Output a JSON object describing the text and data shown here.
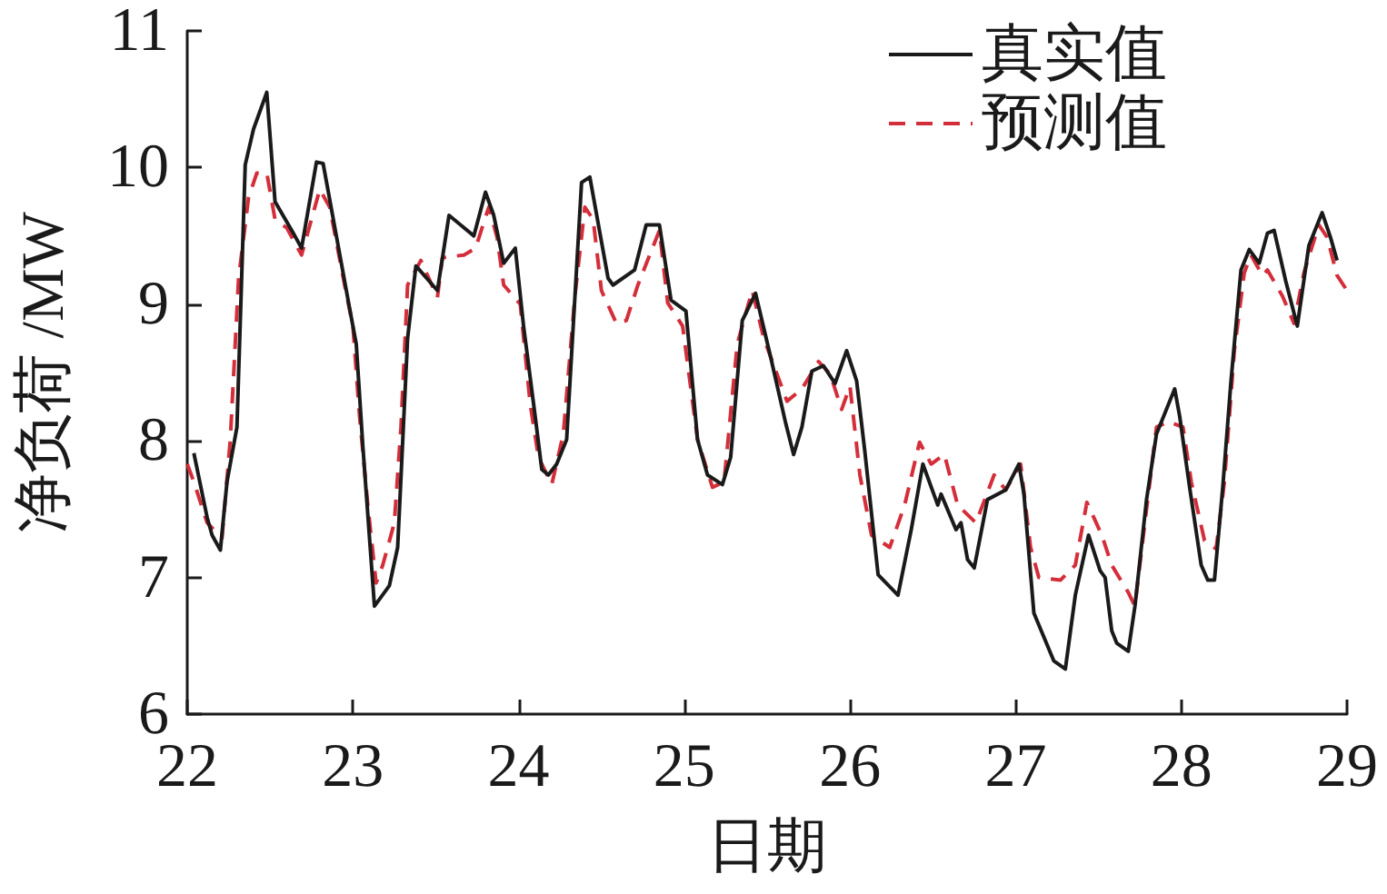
{
  "chart_data": {
    "type": "line",
    "xlabel": "日期",
    "ylabel": "净负荷 /MW",
    "xlim": [
      22,
      29
    ],
    "xticks": [
      22,
      23,
      24,
      25,
      26,
      27,
      28,
      29
    ],
    "ylim": [
      6,
      11
    ],
    "yticks": [
      6,
      7,
      8,
      9,
      10,
      11
    ],
    "grid": false,
    "legend": "top right",
    "marker": "none",
    "series": [
      {
        "name": "真实值",
        "color": "#1a1a1a",
        "line_style": "solid",
        "x": [
          22.04,
          22.12,
          22.15,
          22.2,
          22.24,
          22.3,
          22.35,
          22.4,
          22.48,
          22.53,
          22.64,
          22.69,
          22.78,
          22.82,
          22.98,
          23.02,
          23.06,
          23.13,
          23.22,
          23.27,
          23.33,
          23.38,
          23.51,
          23.58,
          23.73,
          23.8,
          23.85,
          23.91,
          23.98,
          24.03,
          24.1,
          24.14,
          24.18,
          24.23,
          24.29,
          24.38,
          24.43,
          24.54,
          24.57,
          24.7,
          24.77,
          24.85,
          24.92,
          25.01,
          25.08,
          25.14,
          25.23,
          25.28,
          25.35,
          25.43,
          25.52,
          25.61,
          25.66,
          25.71,
          25.77,
          25.84,
          25.91,
          25.98,
          26.04,
          26.09,
          26.17,
          26.29,
          26.37,
          26.44,
          26.53,
          26.55,
          26.64,
          26.67,
          26.71,
          26.75,
          26.83,
          26.94,
          27.02,
          27.05,
          27.11,
          27.23,
          27.3,
          27.36,
          27.44,
          27.51,
          27.54,
          27.58,
          27.61,
          27.68,
          27.72,
          27.79,
          27.85,
          27.96,
          27.99,
          28.05,
          28.12,
          28.16,
          28.2,
          28.25,
          28.3,
          28.36,
          28.41,
          28.47,
          28.52,
          28.56,
          28.63,
          28.7,
          28.77,
          28.85,
          28.9,
          28.94
        ],
        "values": [
          7.91,
          7.44,
          7.31,
          7.2,
          7.7,
          8.1,
          10.02,
          10.28,
          10.55,
          9.75,
          9.52,
          9.41,
          10.04,
          10.03,
          8.97,
          8.71,
          7.96,
          6.79,
          6.94,
          7.22,
          8.75,
          9.28,
          9.1,
          9.65,
          9.5,
          9.82,
          9.65,
          9.3,
          9.41,
          8.84,
          8.18,
          7.79,
          7.75,
          7.83,
          8.01,
          9.89,
          9.93,
          9.19,
          9.14,
          9.25,
          9.58,
          9.58,
          9.03,
          8.95,
          8.01,
          7.75,
          7.68,
          7.88,
          8.88,
          9.08,
          8.62,
          8.14,
          7.9,
          8.1,
          8.51,
          8.55,
          8.42,
          8.66,
          8.44,
          7.92,
          7.02,
          6.87,
          7.35,
          7.83,
          7.53,
          7.61,
          7.35,
          7.4,
          7.13,
          7.07,
          7.57,
          7.64,
          7.83,
          7.61,
          6.74,
          6.39,
          6.33,
          6.87,
          7.31,
          7.05,
          7.0,
          6.61,
          6.52,
          6.46,
          6.79,
          7.57,
          8.05,
          8.38,
          8.18,
          7.66,
          7.09,
          6.98,
          6.98,
          7.66,
          8.44,
          9.25,
          9.4,
          9.3,
          9.52,
          9.54,
          9.17,
          8.84,
          9.43,
          9.67,
          9.49,
          9.32
        ]
      },
      {
        "name": "预测值",
        "color": "#d42e3b",
        "line_style": "dashed",
        "x": [
          22.0,
          22.04,
          22.12,
          22.21,
          22.26,
          22.31,
          22.37,
          22.42,
          22.48,
          22.53,
          22.6,
          22.69,
          22.8,
          22.86,
          22.95,
          23.0,
          23.04,
          23.09,
          23.14,
          23.18,
          23.25,
          23.29,
          23.33,
          23.41,
          23.51,
          23.54,
          23.67,
          23.74,
          23.82,
          23.87,
          23.91,
          24.01,
          24.07,
          24.12,
          24.2,
          24.27,
          24.34,
          24.4,
          24.45,
          24.5,
          24.59,
          24.65,
          24.72,
          24.85,
          24.9,
          24.99,
          25.08,
          25.17,
          25.24,
          25.32,
          25.41,
          25.48,
          25.62,
          25.71,
          25.81,
          25.88,
          25.95,
          26.0,
          26.06,
          26.13,
          26.24,
          26.33,
          26.42,
          26.49,
          26.57,
          26.65,
          26.76,
          26.87,
          26.94,
          27.03,
          27.09,
          27.14,
          27.27,
          27.36,
          27.43,
          27.52,
          27.58,
          27.68,
          27.72,
          27.78,
          27.85,
          27.92,
          28.01,
          28.06,
          28.14,
          28.21,
          28.26,
          28.32,
          28.38,
          28.42,
          28.49,
          28.52,
          28.61,
          28.68,
          28.74,
          28.83,
          28.88,
          28.94,
          29.0
        ],
        "values": [
          7.83,
          7.7,
          7.4,
          7.29,
          8.01,
          9.19,
          9.78,
          9.96,
          9.96,
          9.62,
          9.56,
          9.36,
          9.84,
          9.71,
          9.14,
          8.84,
          8.18,
          7.53,
          6.96,
          7.09,
          7.4,
          8.1,
          9.14,
          9.32,
          9.05,
          9.34,
          9.36,
          9.41,
          9.71,
          9.49,
          9.14,
          9.0,
          8.27,
          7.88,
          7.68,
          8.05,
          9.06,
          9.71,
          9.62,
          9.1,
          8.86,
          8.88,
          9.14,
          9.54,
          9.01,
          8.84,
          8.01,
          7.66,
          7.7,
          8.71,
          9.1,
          8.75,
          8.29,
          8.38,
          8.58,
          8.49,
          8.23,
          8.4,
          7.75,
          7.31,
          7.22,
          7.53,
          7.99,
          7.83,
          7.9,
          7.53,
          7.4,
          7.75,
          7.64,
          7.83,
          7.22,
          7.0,
          6.98,
          7.09,
          7.55,
          7.31,
          7.09,
          6.89,
          6.79,
          7.4,
          8.1,
          8.14,
          8.1,
          7.7,
          7.27,
          7.21,
          7.7,
          8.66,
          9.23,
          9.36,
          9.21,
          9.25,
          9.06,
          8.86,
          9.23,
          9.58,
          9.49,
          9.21,
          9.1
        ]
      }
    ]
  }
}
